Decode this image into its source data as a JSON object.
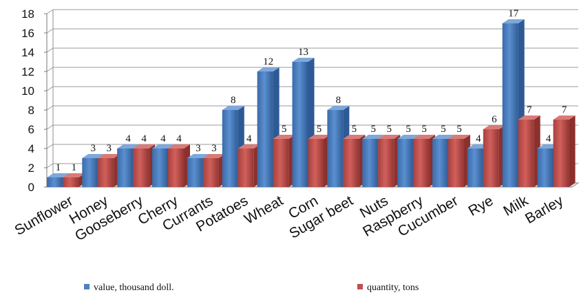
{
  "chart_data": {
    "type": "bar",
    "title": "",
    "xlabel": "",
    "ylabel": "",
    "ylim": [
      0,
      18
    ],
    "yticks": [
      0,
      2,
      4,
      6,
      8,
      10,
      12,
      14,
      16,
      18
    ],
    "grid": true,
    "legend_position": "bottom",
    "categories": [
      "Sunflower",
      "Honey",
      "Gooseberry",
      "Cherry",
      "Currants",
      "Potatoes",
      "Wheat",
      "Corn",
      "Sugar beet",
      "Nuts",
      "Raspberry",
      "Cucumber",
      "Rye",
      "Milk",
      "Barley"
    ],
    "series": [
      {
        "name": "value, thousand doll.",
        "color": "#4F81BD",
        "values": [
          1,
          3,
          4,
          4,
          3,
          8,
          12,
          13,
          8,
          5,
          5,
          5,
          4,
          17,
          4
        ]
      },
      {
        "name": "quantity, tons",
        "color": "#C0504D",
        "values": [
          1,
          3,
          4,
          4,
          3,
          4,
          5,
          5,
          5,
          5,
          5,
          5,
          6,
          7,
          7
        ]
      }
    ]
  }
}
